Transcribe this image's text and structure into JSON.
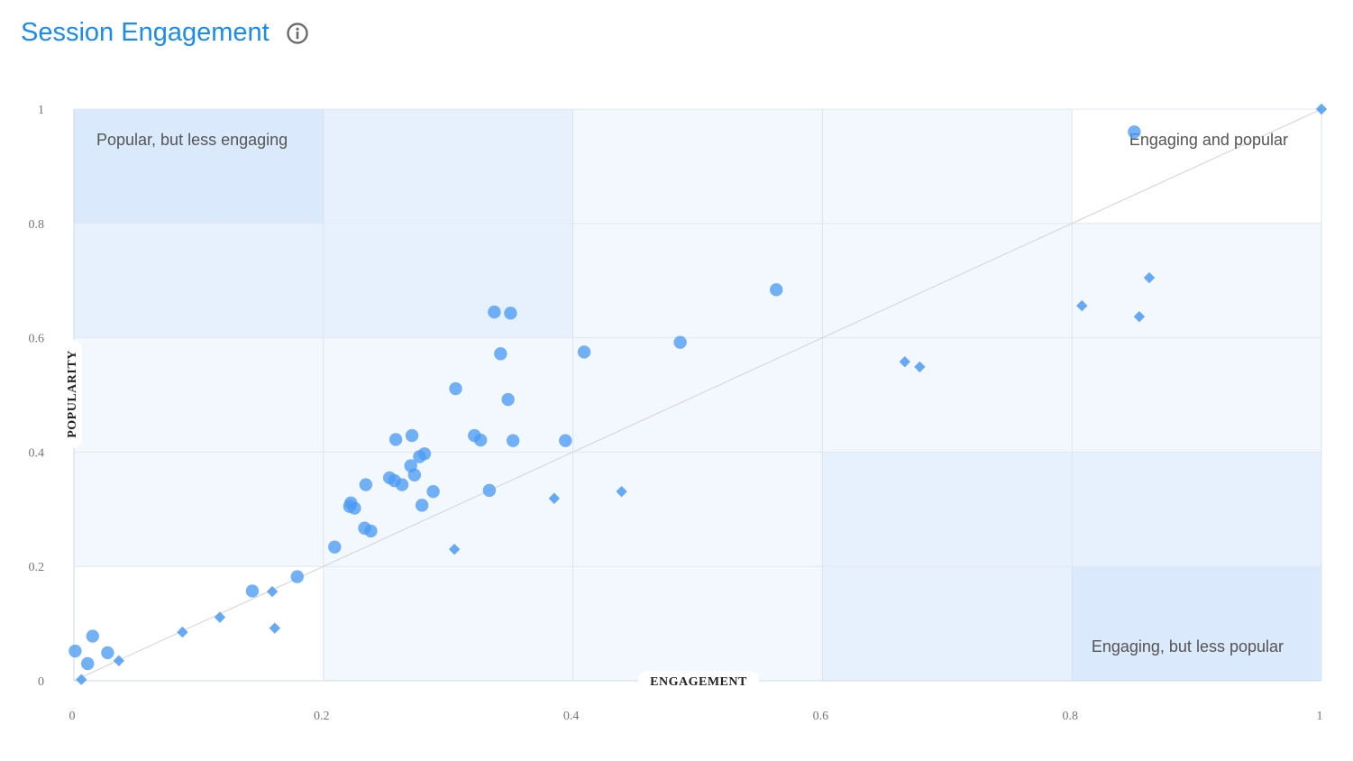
{
  "header": {
    "title": "Session Engagement",
    "info_icon": "info-circle-icon"
  },
  "colors": {
    "title": "#1a8cf0",
    "point": "#4b9bf5",
    "quadrant_dark": "#dae9fc",
    "quadrant_mid": "#e6f1fd",
    "quadrant_light": "#f3f8fe",
    "diagonal": "#d8d8d8"
  },
  "chart_data": {
    "type": "scatter",
    "xlabel": "ENGAGEMENT",
    "ylabel": "POPULARITY",
    "xlim": [
      0,
      1
    ],
    "ylim": [
      0,
      1
    ],
    "x_ticks": [
      "0",
      "0.2",
      "0.4",
      "0.6",
      "0.8",
      "1"
    ],
    "y_ticks": [
      "0",
      "0.2",
      "0.4",
      "0.6",
      "0.8",
      "1"
    ],
    "grid": true,
    "reference_line": [
      [
        0,
        0
      ],
      [
        1,
        1
      ]
    ],
    "quadrant_labels": {
      "top_left": "Popular, but less engaging",
      "top_right": "Engaging and popular",
      "bottom_right": "Engaging, but less popular"
    },
    "series": [
      {
        "marker": "circle",
        "points": [
          [
            0.001,
            0.052
          ],
          [
            0.011,
            0.03
          ],
          [
            0.015,
            0.078
          ],
          [
            0.027,
            0.049
          ],
          [
            0.143,
            0.157
          ],
          [
            0.179,
            0.182
          ],
          [
            0.209,
            0.234
          ],
          [
            0.221,
            0.305
          ],
          [
            0.222,
            0.311
          ],
          [
            0.225,
            0.302
          ],
          [
            0.233,
            0.267
          ],
          [
            0.234,
            0.343
          ],
          [
            0.238,
            0.262
          ],
          [
            0.253,
            0.355
          ],
          [
            0.257,
            0.35
          ],
          [
            0.258,
            0.422
          ],
          [
            0.263,
            0.343
          ],
          [
            0.27,
            0.376
          ],
          [
            0.271,
            0.429
          ],
          [
            0.273,
            0.36
          ],
          [
            0.277,
            0.392
          ],
          [
            0.279,
            0.307
          ],
          [
            0.281,
            0.397
          ],
          [
            0.288,
            0.331
          ],
          [
            0.306,
            0.511
          ],
          [
            0.321,
            0.429
          ],
          [
            0.326,
            0.421
          ],
          [
            0.333,
            0.333
          ],
          [
            0.337,
            0.645
          ],
          [
            0.342,
            0.572
          ],
          [
            0.348,
            0.492
          ],
          [
            0.35,
            0.643
          ],
          [
            0.352,
            0.42
          ],
          [
            0.394,
            0.42
          ],
          [
            0.409,
            0.575
          ],
          [
            0.486,
            0.592
          ],
          [
            0.563,
            0.684
          ],
          [
            0.85,
            0.96
          ]
        ]
      },
      {
        "marker": "diamond",
        "points": [
          [
            0.006,
            0.002
          ],
          [
            0.036,
            0.035
          ],
          [
            0.087,
            0.085
          ],
          [
            0.117,
            0.111
          ],
          [
            0.159,
            0.156
          ],
          [
            0.161,
            0.092
          ],
          [
            0.305,
            0.23
          ],
          [
            0.385,
            0.319
          ],
          [
            0.439,
            0.331
          ],
          [
            0.666,
            0.558
          ],
          [
            0.678,
            0.549
          ],
          [
            0.808,
            0.656
          ],
          [
            0.854,
            0.637
          ],
          [
            0.862,
            0.705
          ],
          [
            1.0,
            1.0
          ]
        ]
      }
    ]
  }
}
